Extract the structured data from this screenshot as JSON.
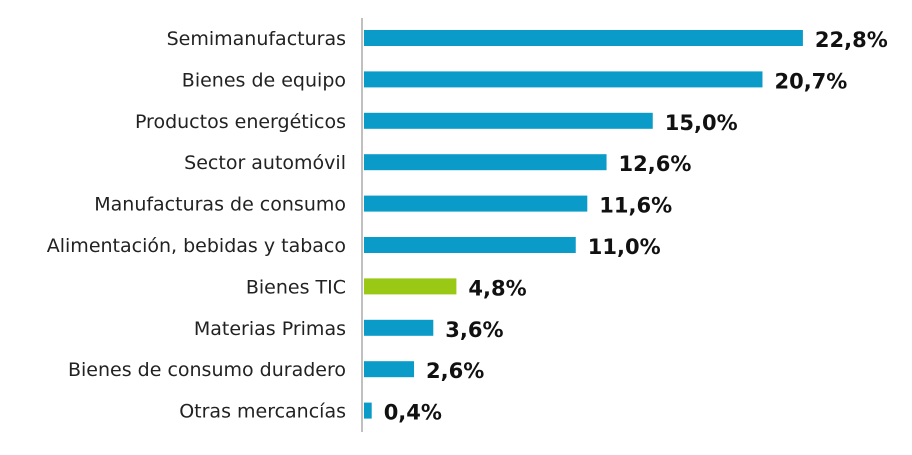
{
  "chart_data": {
    "type": "bar",
    "orientation": "horizontal",
    "categories": [
      "Semimanufacturas",
      "Bienes de equipo",
      "Productos energéticos",
      "Sector automóvil",
      "Manufacturas de consumo",
      "Alimentación, bebidas y tabaco",
      "Bienes TIC",
      "Materias Primas",
      "Bienes de consumo duradero",
      "Otras mercancías"
    ],
    "values": [
      22.8,
      20.7,
      15.0,
      12.6,
      11.6,
      11.0,
      4.8,
      3.6,
      2.6,
      0.4
    ],
    "value_labels": [
      "22,8%",
      "20,7%",
      "15,0%",
      "12,6%",
      "11,6%",
      "11,0%",
      "4,8%",
      "3,6%",
      "2,6%",
      "0,4%"
    ],
    "unit": "%",
    "highlight_category": "Bienes TIC",
    "colors": {
      "default": "#0a9bc9",
      "highlight": "#99c914",
      "axis": "#c0c0c0"
    },
    "grid": false,
    "legend": "none"
  }
}
